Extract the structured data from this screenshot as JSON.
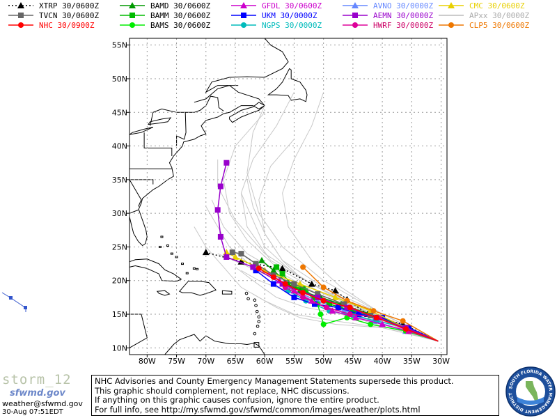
{
  "legend": [
    {
      "id": "xtrp",
      "label": "XTRP  30/0600Z",
      "color": "#000000",
      "marker": "triangle",
      "dotted": true,
      "text_color": "#000000"
    },
    {
      "id": "bamd",
      "label": "BAMD  30/0600Z",
      "color": "#009900",
      "marker": "triangle",
      "dotted": false,
      "text_color": "#000000"
    },
    {
      "id": "gfdl",
      "label": "GFDL  30/0600Z",
      "color": "#cc00cc",
      "marker": "triangle",
      "dotted": false,
      "text_color": "#cc00cc"
    },
    {
      "id": "avno",
      "label": "AVNO  30/0000Z",
      "color": "#6688ff",
      "marker": "triangle",
      "dotted": false,
      "text_color": "#6688ff"
    },
    {
      "id": "cmc",
      "label": "CMC  30/0600Z",
      "color": "#e8d000",
      "marker": "triangle",
      "dotted": false,
      "text_color": "#e8d000"
    },
    {
      "id": "tvcn",
      "label": "TVCN  30/0600Z",
      "color": "#666666",
      "marker": "square",
      "dotted": false,
      "text_color": "#000000"
    },
    {
      "id": "bamm",
      "label": "BAMM  30/0600Z",
      "color": "#00bb00",
      "marker": "square",
      "dotted": false,
      "text_color": "#000000"
    },
    {
      "id": "ukm",
      "label": "UKM   30/0000Z",
      "color": "#0000ff",
      "marker": "square",
      "dotted": false,
      "text_color": "#0000ff"
    },
    {
      "id": "aemn",
      "label": "AEMN  30/0000Z",
      "color": "#9900cc",
      "marker": "square",
      "dotted": false,
      "text_color": "#9900cc"
    },
    {
      "id": "apxx",
      "label": "APxx  30/0000Z",
      "color": "#bbbbbb",
      "marker": "none",
      "dotted": false,
      "text_color": "#aaaaaa"
    },
    {
      "id": "nhc",
      "label": "NHC   30/0900Z",
      "color": "#ff0000",
      "marker": "circle",
      "dotted": false,
      "text_color": "#ff0000"
    },
    {
      "id": "bams",
      "label": "BAMS  30/0600Z",
      "color": "#00ee00",
      "marker": "circle",
      "dotted": false,
      "text_color": "#000000"
    },
    {
      "id": "ngps",
      "label": "NGPS  30/0000Z",
      "color": "#00bbbb",
      "marker": "circle",
      "dotted": false,
      "text_color": "#00bbbb"
    },
    {
      "id": "hwrf",
      "label": "HWRF  30/0000Z",
      "color": "#dd0099",
      "marker": "circle",
      "dotted": false,
      "text_color": "#cc0066"
    },
    {
      "id": "clp5",
      "label": "CLP5  30/0600Z",
      "color": "#ee7700",
      "marker": "circle",
      "dotted": false,
      "text_color": "#ee7700"
    }
  ],
  "lat_labels": [
    "55N",
    "50N",
    "45N",
    "40N",
    "35N",
    "30N",
    "25N",
    "20N",
    "15N",
    "10N"
  ],
  "lon_labels": [
    "80W",
    "75W",
    "70W",
    "65W",
    "60W",
    "55W",
    "50W",
    "45W",
    "40W",
    "35W",
    "30W"
  ],
  "tracks": {
    "xtrp": [
      [
        -30.5,
        11.0
      ],
      [
        -36.5,
        13.5
      ],
      [
        -42.5,
        15.0
      ],
      [
        -46.0,
        17.2
      ],
      [
        -48.0,
        18.5
      ],
      [
        -52.0,
        19.5
      ],
      [
        -57.0,
        21.8
      ],
      [
        -64.0,
        22.8
      ],
      [
        -70.0,
        24.2
      ]
    ],
    "tvcn": [
      [
        -30.5,
        11.0
      ],
      [
        -36.0,
        13.0
      ],
      [
        -42.0,
        14.8
      ],
      [
        -46.5,
        16.5
      ],
      [
        -51.0,
        18.0
      ],
      [
        -55.0,
        19.5
      ],
      [
        -58.5,
        20.8
      ],
      [
        -61.5,
        22.5
      ],
      [
        -64.0,
        24.0
      ],
      [
        -65.5,
        24.2
      ]
    ],
    "nhc": [
      [
        -30.5,
        11.0
      ],
      [
        -36.0,
        12.8
      ],
      [
        -41.0,
        14.5
      ],
      [
        -45.5,
        16.0
      ],
      [
        -50.0,
        17.0
      ],
      [
        -53.5,
        18.2
      ],
      [
        -56.5,
        19.5
      ],
      [
        -58.5,
        20.5
      ],
      [
        -61.0,
        21.8
      ]
    ],
    "bamd": [
      [
        -30.5,
        11.0
      ],
      [
        -36.0,
        13.0
      ],
      [
        -42.0,
        15.0
      ],
      [
        -47.0,
        16.5
      ],
      [
        -50.5,
        17.5
      ],
      [
        -54.0,
        18.5
      ],
      [
        -56.0,
        19.5
      ],
      [
        -58.5,
        21.5
      ],
      [
        -60.5,
        23.0
      ]
    ],
    "bamm": [
      [
        -30.5,
        11.0
      ],
      [
        -36.0,
        13.0
      ],
      [
        -41.0,
        14.5
      ],
      [
        -45.0,
        15.5
      ],
      [
        -49.0,
        16.5
      ],
      [
        -51.5,
        17.5
      ],
      [
        -53.5,
        18.8
      ],
      [
        -55.0,
        19.0
      ],
      [
        -57.0,
        21.0
      ],
      [
        -58.0,
        22.0
      ]
    ],
    "bams": [
      [
        -30.5,
        11.0
      ],
      [
        -36.0,
        12.5
      ],
      [
        -42.0,
        13.5
      ],
      [
        -46.0,
        14.5
      ],
      [
        -50.0,
        13.5
      ],
      [
        -50.5,
        15.0
      ],
      [
        -51.0,
        16.5
      ],
      [
        -53.0,
        18.5
      ],
      [
        -54.5,
        19.0
      ]
    ],
    "gfdl": [
      [
        -30.5,
        11.0
      ],
      [
        -35.5,
        12.5
      ],
      [
        -40.0,
        13.5
      ],
      [
        -44.5,
        14.5
      ],
      [
        -48.5,
        15.5
      ],
      [
        -52.0,
        17.0
      ],
      [
        -55.0,
        18.5
      ],
      [
        -57.5,
        20.0
      ],
      [
        -60.0,
        21.5
      ]
    ],
    "ukm": [
      [
        -30.5,
        11.0
      ],
      [
        -35.5,
        13.0
      ],
      [
        -40.0,
        14.5
      ],
      [
        -44.0,
        15.0
      ],
      [
        -47.5,
        16.0
      ],
      [
        -51.5,
        16.5
      ],
      [
        -55.0,
        17.5
      ],
      [
        -58.5,
        19.5
      ],
      [
        -61.5,
        21.5
      ]
    ],
    "ngps": [
      [
        -30.5,
        11.0
      ],
      [
        -36.0,
        13.0
      ],
      [
        -41.0,
        14.0
      ],
      [
        -45.0,
        14.8
      ],
      [
        -49.0,
        15.5
      ],
      [
        -53.0,
        17.0
      ],
      [
        -56.0,
        18.5
      ]
    ],
    "aemn": [
      [
        -30.5,
        11.0
      ],
      [
        -36.0,
        13.0
      ],
      [
        -41.0,
        14.5
      ],
      [
        -46.0,
        16.0
      ],
      [
        -51.0,
        17.5
      ],
      [
        -57.0,
        19.5
      ],
      [
        -62.0,
        22.0
      ],
      [
        -66.5,
        23.5
      ],
      [
        -67.5,
        26.5
      ],
      [
        -68.0,
        30.5
      ],
      [
        -67.5,
        34.0
      ],
      [
        -66.5,
        37.5
      ]
    ],
    "avno": [
      [
        -30.5,
        11.0
      ],
      [
        -36.0,
        12.5
      ],
      [
        -41.5,
        14.0
      ],
      [
        -46.5,
        15.5
      ],
      [
        -51.0,
        17.0
      ],
      [
        -55.0,
        18.5
      ]
    ],
    "cmc": [
      [
        -30.5,
        11.0
      ],
      [
        -36.0,
        13.0
      ],
      [
        -42.0,
        15.5
      ],
      [
        -48.0,
        17.5
      ],
      [
        -54.0,
        19.5
      ],
      [
        -60.0,
        21.5
      ],
      [
        -65.0,
        23.5
      ],
      [
        -66.5,
        24.2
      ]
    ],
    "hwrf": [
      [
        -30.5,
        11.0
      ],
      [
        -35.5,
        12.5
      ],
      [
        -40.5,
        14.5
      ],
      [
        -45.5,
        15.0
      ],
      [
        -49.5,
        16.0
      ],
      [
        -53.5,
        17.5
      ],
      [
        -56.5,
        19.0
      ]
    ],
    "clp5": [
      [
        -30.5,
        11.0
      ],
      [
        -36.5,
        14.0
      ],
      [
        -41.5,
        15.5
      ],
      [
        -46.0,
        17.0
      ],
      [
        -50.0,
        19.0
      ],
      [
        -53.5,
        22.0
      ]
    ]
  },
  "spaghetti": [
    [
      [
        -30.5,
        11.0
      ],
      [
        -40,
        14.5
      ],
      [
        -50,
        18
      ],
      [
        -58,
        22
      ],
      [
        -63,
        26
      ],
      [
        -66,
        30
      ],
      [
        -67,
        35
      ],
      [
        -65,
        40
      ],
      [
        -60,
        45
      ]
    ],
    [
      [
        -30.5,
        11.0
      ],
      [
        -41,
        15
      ],
      [
        -51,
        19
      ],
      [
        -59,
        23
      ],
      [
        -63,
        28
      ],
      [
        -64,
        33
      ],
      [
        -62,
        38
      ],
      [
        -58,
        43
      ],
      [
        -55,
        48
      ]
    ],
    [
      [
        -30.5,
        11.0
      ],
      [
        -42,
        15
      ],
      [
        -52,
        19.5
      ],
      [
        -60,
        24
      ],
      [
        -65,
        29
      ],
      [
        -68,
        34
      ],
      [
        -68,
        38
      ]
    ],
    [
      [
        -30.5,
        11.0
      ],
      [
        -40,
        15
      ],
      [
        -50,
        19
      ],
      [
        -57,
        23
      ],
      [
        -60,
        27
      ],
      [
        -61,
        32
      ],
      [
        -59,
        37
      ],
      [
        -55,
        41
      ]
    ],
    [
      [
        -30.5,
        11.0
      ],
      [
        -40,
        14
      ],
      [
        -49,
        17
      ],
      [
        -57,
        21
      ],
      [
        -63,
        24
      ],
      [
        -67,
        28
      ],
      [
        -69,
        32
      ]
    ],
    [
      [
        -30.5,
        11.0
      ],
      [
        -40,
        13.5
      ],
      [
        -49,
        16
      ],
      [
        -56,
        19
      ],
      [
        -62,
        22
      ],
      [
        -66,
        25
      ],
      [
        -68,
        28
      ],
      [
        -70,
        31
      ]
    ],
    [
      [
        -30.5,
        11.0
      ],
      [
        -40,
        13
      ],
      [
        -48,
        14
      ],
      [
        -55,
        15
      ],
      [
        -60,
        17
      ],
      [
        -64,
        19
      ],
      [
        -67,
        22
      ],
      [
        -70,
        25
      ],
      [
        -72,
        28
      ]
    ],
    [
      [
        -30.5,
        11.0
      ],
      [
        -40,
        13
      ],
      [
        -48,
        13.5
      ],
      [
        -54,
        14.5
      ],
      [
        -58,
        16
      ],
      [
        -62,
        18
      ]
    ],
    [
      [
        -30.5,
        11.0
      ],
      [
        -42,
        14.5
      ],
      [
        -50,
        17
      ],
      [
        -55,
        19.5
      ],
      [
        -60,
        21
      ],
      [
        -64,
        22.5
      ],
      [
        -68,
        24
      ]
    ],
    [
      [
        -30.5,
        11.0
      ],
      [
        -40,
        15
      ],
      [
        -47,
        19
      ],
      [
        -52,
        23
      ],
      [
        -56,
        28
      ],
      [
        -57,
        33
      ],
      [
        -55,
        38
      ],
      [
        -52,
        43
      ],
      [
        -50,
        48
      ]
    ],
    [
      [
        -30.5,
        11.0
      ],
      [
        -41,
        15.5
      ],
      [
        -50,
        20
      ],
      [
        -57,
        25
      ],
      [
        -61,
        30
      ],
      [
        -63,
        36
      ],
      [
        -62,
        42
      ],
      [
        -60,
        46
      ]
    ],
    [
      [
        -30.5,
        11.0
      ],
      [
        -40,
        14
      ],
      [
        -48,
        16
      ],
      [
        -53,
        17.5
      ],
      [
        -58,
        19
      ],
      [
        -61,
        20
      ],
      [
        -64,
        21.5
      ]
    ],
    [
      [
        -30.5,
        11.0
      ],
      [
        -41,
        14.5
      ],
      [
        -49,
        18
      ],
      [
        -55,
        21
      ],
      [
        -60,
        25
      ],
      [
        -62,
        29
      ],
      [
        -64,
        33
      ]
    ],
    [
      [
        -30.5,
        11.0
      ],
      [
        -39,
        13
      ],
      [
        -47,
        15
      ],
      [
        -53,
        16
      ],
      [
        -58,
        17.5
      ],
      [
        -62,
        20
      ],
      [
        -65,
        22
      ]
    ],
    [
      [
        -30.5,
        11.0
      ],
      [
        -40,
        14.5
      ],
      [
        -48,
        17.5
      ],
      [
        -54,
        20.5
      ],
      [
        -57,
        23
      ],
      [
        -60,
        27
      ],
      [
        -62,
        31
      ],
      [
        -63,
        35
      ]
    ]
  ],
  "storm_name": "storm_12",
  "wordmark": "sfwmd.gov",
  "email": "weather@sfwmd.gov",
  "timestamp": "30-Aug 07:51EDT",
  "disclaimer": [
    "NHC Advisories and County Emergency Management Statements supersede this product.",
    "This graphic should complement, not replace, NHC discussions.",
    "If anything on this graphic causes confusion, ignore the entire product.",
    "For full info, see  http://my.sfwmd.gov/sfwmd/common/images/weather/plots.html"
  ],
  "seal_text": "SOUTH FLORIDA WATER MANAGEMENT DISTRICT"
}
